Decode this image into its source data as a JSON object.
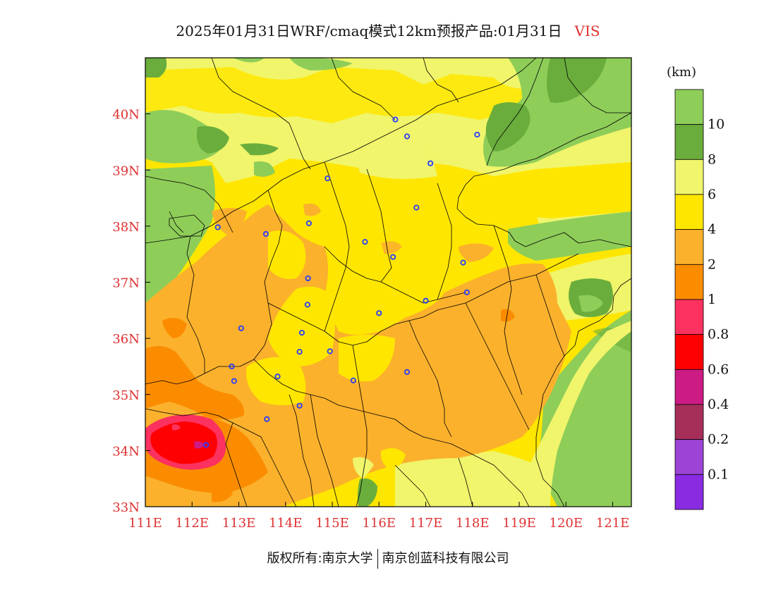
{
  "title": {
    "main": "2025年01月31日WRF/cmaq模式12km预报产品:01月31日",
    "variable": "VIS"
  },
  "colorbar": {
    "unit": "(km)",
    "labels": [
      "10",
      "8",
      "6",
      "4",
      "2",
      "1",
      "0.8",
      "0.6",
      "0.4",
      "0.2",
      "0.1"
    ],
    "colors": [
      "#8fcd59",
      "#6aad3c",
      "#f0f56b",
      "#ffe600",
      "#fbb12c",
      "#fb8c00",
      "#fb3160",
      "#ff0000",
      "#cc1b85",
      "#a62f5a",
      "#9b44d5",
      "#8a2be2"
    ]
  },
  "axes": {
    "x_ticks": [
      "111E",
      "112E",
      "113E",
      "114E",
      "115E",
      "116E",
      "117E",
      "118E",
      "119E",
      "120E",
      "121E"
    ],
    "y_ticks": [
      "33N",
      "34N",
      "35N",
      "36N",
      "37N",
      "38N",
      "39N",
      "40N"
    ],
    "tick_color": "#e03030"
  },
  "footer": {
    "left": "版权所有:南京大学",
    "right": "南京创蓝科技有限公司"
  },
  "cities": [
    [
      116.35,
      39.9
    ],
    [
      116.6,
      39.6
    ],
    [
      117.1,
      39.12
    ],
    [
      118.1,
      39.63
    ],
    [
      114.9,
      38.85
    ],
    [
      116.8,
      38.33
    ],
    [
      112.55,
      37.98
    ],
    [
      113.58,
      37.86
    ],
    [
      114.5,
      38.05
    ],
    [
      115.7,
      37.72
    ],
    [
      116.3,
      37.45
    ],
    [
      114.48,
      37.07
    ],
    [
      114.47,
      36.6
    ],
    [
      114.35,
      36.1
    ],
    [
      113.05,
      36.18
    ],
    [
      112.85,
      35.5
    ],
    [
      112.9,
      35.24
    ],
    [
      113.83,
      35.32
    ],
    [
      114.3,
      35.76
    ],
    [
      114.95,
      35.77
    ],
    [
      115.45,
      35.25
    ],
    [
      116.0,
      36.45
    ],
    [
      116.6,
      35.4
    ],
    [
      117.0,
      36.67
    ],
    [
      117.88,
      36.82
    ],
    [
      117.8,
      37.35
    ],
    [
      114.3,
      34.8
    ],
    [
      113.6,
      34.56
    ],
    [
      112.3,
      34.1
    ]
  ]
}
